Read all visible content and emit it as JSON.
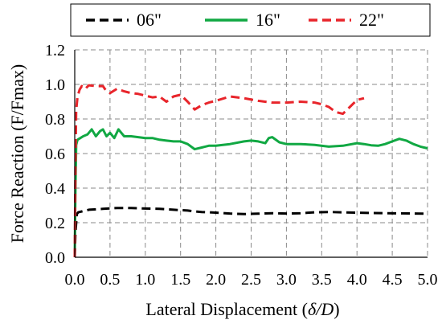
{
  "chart_data": {
    "type": "line",
    "title": "",
    "xlabel": "Lateral Displacement (",
    "xlabel_symbol": "δ/D",
    "xlabel_close": ")",
    "ylabel": "Force Reaction (F/Fmax)",
    "xlim": [
      0,
      5
    ],
    "ylim": [
      0,
      1.2
    ],
    "x_ticks": [
      0,
      0.5,
      1,
      1.5,
      2,
      2.5,
      3,
      3.5,
      4,
      4.5,
      5
    ],
    "x_tick_labels": [
      "0.0",
      "0.5",
      "1.0",
      "1.5",
      "2.0",
      "2.5",
      "3.0",
      "3.5",
      "4.0",
      "4.5",
      "5.0"
    ],
    "y_ticks": [
      0,
      0.2,
      0.4,
      0.6,
      0.8,
      1,
      1.2
    ],
    "y_tick_labels": [
      "0.0",
      "0.2",
      "0.4",
      "0.6",
      "0.8",
      "1.0",
      "1.2"
    ],
    "grid": true,
    "legend_position": "top",
    "series": [
      {
        "name": "06\"",
        "color": "#000000",
        "dash": "dashed",
        "points": [
          [
            0,
            0
          ],
          [
            0.01,
            0.14
          ],
          [
            0.03,
            0.25
          ],
          [
            0.05,
            0.26
          ],
          [
            0.1,
            0.265
          ],
          [
            0.2,
            0.275
          ],
          [
            0.4,
            0.28
          ],
          [
            0.6,
            0.285
          ],
          [
            0.8,
            0.285
          ],
          [
            1.0,
            0.282
          ],
          [
            1.2,
            0.28
          ],
          [
            1.4,
            0.275
          ],
          [
            1.6,
            0.27
          ],
          [
            1.7,
            0.265
          ],
          [
            1.8,
            0.262
          ],
          [
            2.0,
            0.258
          ],
          [
            2.2,
            0.253
          ],
          [
            2.4,
            0.25
          ],
          [
            2.6,
            0.252
          ],
          [
            2.8,
            0.255
          ],
          [
            3.0,
            0.253
          ],
          [
            3.2,
            0.255
          ],
          [
            3.4,
            0.26
          ],
          [
            3.6,
            0.262
          ],
          [
            3.8,
            0.26
          ],
          [
            4.0,
            0.258
          ],
          [
            4.2,
            0.256
          ],
          [
            4.4,
            0.255
          ],
          [
            4.6,
            0.254
          ],
          [
            4.8,
            0.253
          ],
          [
            5.0,
            0.252
          ]
        ]
      },
      {
        "name": "16\"",
        "color": "#11a843",
        "dash": "solid",
        "points": [
          [
            0,
            0.0
          ],
          [
            0.01,
            0.4
          ],
          [
            0.02,
            0.65
          ],
          [
            0.04,
            0.68
          ],
          [
            0.08,
            0.69
          ],
          [
            0.12,
            0.7
          ],
          [
            0.18,
            0.71
          ],
          [
            0.24,
            0.74
          ],
          [
            0.3,
            0.7
          ],
          [
            0.36,
            0.73
          ],
          [
            0.4,
            0.74
          ],
          [
            0.45,
            0.7
          ],
          [
            0.5,
            0.72
          ],
          [
            0.56,
            0.69
          ],
          [
            0.62,
            0.74
          ],
          [
            0.7,
            0.7
          ],
          [
            0.8,
            0.7
          ],
          [
            0.9,
            0.695
          ],
          [
            1.0,
            0.69
          ],
          [
            1.1,
            0.69
          ],
          [
            1.2,
            0.68
          ],
          [
            1.3,
            0.675
          ],
          [
            1.4,
            0.67
          ],
          [
            1.5,
            0.67
          ],
          [
            1.6,
            0.655
          ],
          [
            1.7,
            0.625
          ],
          [
            1.8,
            0.635
          ],
          [
            1.9,
            0.645
          ],
          [
            2.0,
            0.645
          ],
          [
            2.2,
            0.655
          ],
          [
            2.4,
            0.67
          ],
          [
            2.5,
            0.675
          ],
          [
            2.6,
            0.67
          ],
          [
            2.7,
            0.66
          ],
          [
            2.75,
            0.69
          ],
          [
            2.8,
            0.695
          ],
          [
            2.9,
            0.665
          ],
          [
            3.0,
            0.655
          ],
          [
            3.2,
            0.655
          ],
          [
            3.4,
            0.65
          ],
          [
            3.6,
            0.64
          ],
          [
            3.8,
            0.645
          ],
          [
            4.0,
            0.66
          ],
          [
            4.1,
            0.655
          ],
          [
            4.2,
            0.648
          ],
          [
            4.3,
            0.645
          ],
          [
            4.4,
            0.655
          ],
          [
            4.5,
            0.67
          ],
          [
            4.6,
            0.685
          ],
          [
            4.7,
            0.675
          ],
          [
            4.8,
            0.655
          ],
          [
            4.9,
            0.64
          ],
          [
            5.0,
            0.63
          ]
        ]
      },
      {
        "name": "22\"",
        "color": "#e8252b",
        "dash": "dashed",
        "points": [
          [
            0,
            0.0
          ],
          [
            0.01,
            0.55
          ],
          [
            0.02,
            0.85
          ],
          [
            0.04,
            0.93
          ],
          [
            0.07,
            0.97
          ],
          [
            0.1,
            0.99
          ],
          [
            0.15,
            0.975
          ],
          [
            0.2,
            0.995
          ],
          [
            0.3,
            0.99
          ],
          [
            0.4,
            0.99
          ],
          [
            0.45,
            0.96
          ],
          [
            0.5,
            0.95
          ],
          [
            0.6,
            0.975
          ],
          [
            0.7,
            0.96
          ],
          [
            0.8,
            0.95
          ],
          [
            0.9,
            0.945
          ],
          [
            1.0,
            0.935
          ],
          [
            1.1,
            0.925
          ],
          [
            1.2,
            0.93
          ],
          [
            1.3,
            0.9
          ],
          [
            1.4,
            0.93
          ],
          [
            1.5,
            0.94
          ],
          [
            1.6,
            0.9
          ],
          [
            1.7,
            0.855
          ],
          [
            1.8,
            0.88
          ],
          [
            1.9,
            0.895
          ],
          [
            2.0,
            0.905
          ],
          [
            2.2,
            0.93
          ],
          [
            2.4,
            0.92
          ],
          [
            2.6,
            0.905
          ],
          [
            2.8,
            0.895
          ],
          [
            3.0,
            0.895
          ],
          [
            3.2,
            0.9
          ],
          [
            3.4,
            0.895
          ],
          [
            3.5,
            0.885
          ],
          [
            3.6,
            0.87
          ],
          [
            3.7,
            0.84
          ],
          [
            3.8,
            0.83
          ],
          [
            3.9,
            0.87
          ],
          [
            4.0,
            0.91
          ],
          [
            4.1,
            0.92
          ]
        ]
      }
    ]
  }
}
